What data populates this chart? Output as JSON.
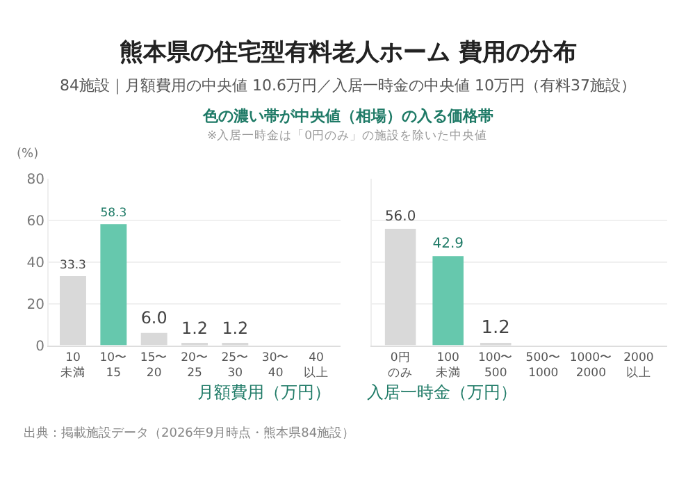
{
  "chart_data": [
    {
      "type": "bar",
      "title": "熊本県の住宅型有料老人ホーム 費用の分布",
      "subtitle": "84施設｜月額費用の中央値 10.6万円／入居一時金の中央値 10万円（有料37施設）",
      "annotations": [
        "色の濃い帯が中央値（相場）の入る価格帯",
        "※入居一時金は「0円のみ」の施設を除いた中央値",
        "出典：掲載施設データ（2026年9月時点・熊本県84施設）"
      ],
      "ylabel": "(%)",
      "xlabel": "月額費用（万円）",
      "categories": [
        "10\n未満",
        "10〜\n15",
        "15〜\n20",
        "20〜\n25",
        "25〜\n30",
        "30〜\n40",
        "40\n以上"
      ],
      "values": [
        33.3,
        58.3,
        6.0,
        1.2,
        1.2,
        0,
        0
      ],
      "value_labels": [
        "33.3",
        "58.3",
        "6.0",
        "1.2",
        "1.2",
        null,
        null
      ],
      "colors": [
        "#d9d9d9",
        "#66c8ad",
        "#d9d9d9",
        "#d9d9d9",
        "#d9d9d9",
        "#d9d9d9",
        "#d9d9d9"
      ],
      "ylim": [
        0,
        80
      ],
      "yticks": [
        0,
        20,
        40,
        60,
        80
      ],
      "grid": "y"
    },
    {
      "type": "bar",
      "xlabel": "入居一時金（万円）",
      "categories": [
        "0円のみ",
        "100\n未満",
        "100〜\n500",
        "500〜\n1000",
        "1000〜\n2000",
        "2000\n以上"
      ],
      "values": [
        56.0,
        42.9,
        1.2,
        0,
        0,
        0
      ],
      "value_labels": [
        "56.0",
        "42.9",
        "1.2",
        null,
        null,
        null
      ],
      "colors": [
        "#d9d9d9",
        "#66c8ad",
        "#d9d9d9",
        "#d9d9d9",
        "#d9d9d9",
        "#d9d9d9"
      ],
      "ylim": [
        0,
        80
      ],
      "yticks": [
        0,
        20,
        40,
        60,
        80
      ],
      "grid": "y",
      "tick_labels": "x"
    }
  ]
}
